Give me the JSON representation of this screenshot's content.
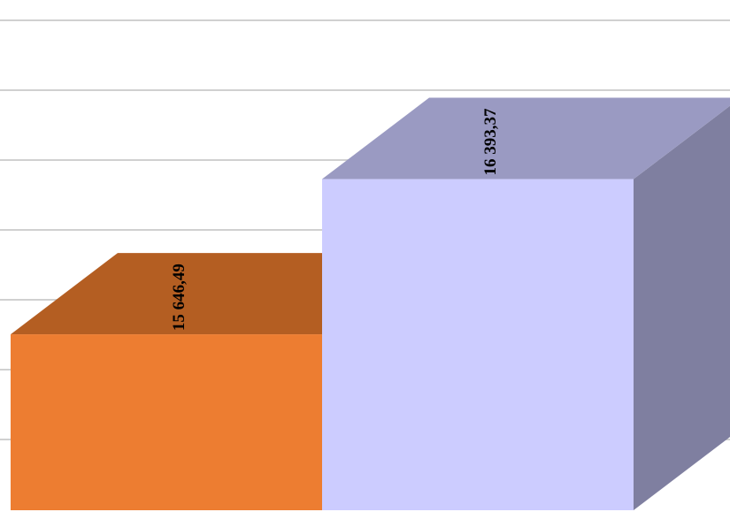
{
  "chart_data": {
    "type": "bar",
    "style": "3d-column",
    "categories": [
      "",
      ""
    ],
    "values": [
      15646.49,
      16393.37
    ],
    "data_labels": [
      "15 646,49",
      "16 393,37"
    ],
    "title": "",
    "xlabel": "",
    "ylabel": "",
    "ylim": [
      14800,
      16500
    ],
    "grid": true,
    "legend": "none",
    "colors": [
      {
        "front": "#ED7D31",
        "top": "#B45E22",
        "side": "#A04F1A"
      },
      {
        "front": "#CCCCFF",
        "top": "#9A9AC2",
        "side": "#7F7FA0"
      }
    ]
  }
}
